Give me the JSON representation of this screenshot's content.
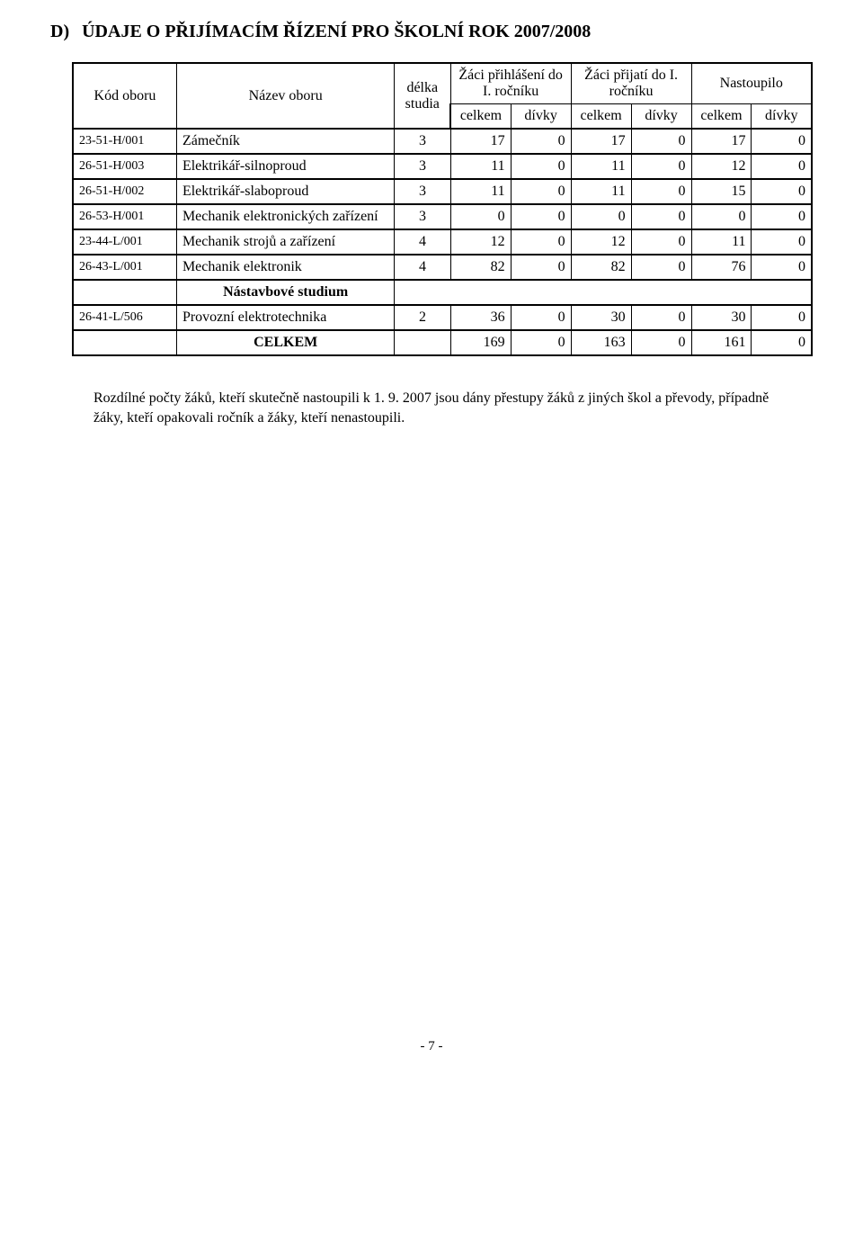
{
  "heading": {
    "letter": "D)",
    "title": "ÚDAJE O PŘIJÍMACÍM ŘÍZENÍ PRO ŠKOLNÍ ROK 2007/2008"
  },
  "table": {
    "headers": {
      "code": "Kód oboru",
      "name": "Název oboru",
      "duration": "délka studia",
      "group_applied": "Žáci přihlášení do I. ročníku",
      "group_accepted": "Žáci přijatí do I. ročníku",
      "group_enrolled": "Nastoupilo",
      "sub_total": "celkem",
      "sub_girls": "dívky"
    },
    "rows": [
      {
        "code": "23-51-H/001",
        "name": "Zámečník",
        "dur": "3",
        "a_t": "17",
        "a_g": "0",
        "p_t": "17",
        "p_g": "0",
        "n_t": "17",
        "n_g": "0"
      },
      {
        "code": "26-51-H/003",
        "name": "Elektrikář-silnoproud",
        "dur": "3",
        "a_t": "11",
        "a_g": "0",
        "p_t": "11",
        "p_g": "0",
        "n_t": "12",
        "n_g": "0"
      },
      {
        "code": "26-51-H/002",
        "name": "Elektrikář-slaboproud",
        "dur": "3",
        "a_t": "11",
        "a_g": "0",
        "p_t": "11",
        "p_g": "0",
        "n_t": "15",
        "n_g": "0"
      },
      {
        "code": "26-53-H/001",
        "name": "Mechanik elektronických zařízení",
        "dur": "3",
        "a_t": "0",
        "a_g": "0",
        "p_t": "0",
        "p_g": "0",
        "n_t": "0",
        "n_g": "0"
      },
      {
        "code": "23-44-L/001",
        "name": "Mechanik strojů a zařízení",
        "dur": "4",
        "a_t": "12",
        "a_g": "0",
        "p_t": "12",
        "p_g": "0",
        "n_t": "11",
        "n_g": "0"
      },
      {
        "code": "26-43-L/001",
        "name": "Mechanik elektronik",
        "dur": "4",
        "a_t": "82",
        "a_g": "0",
        "p_t": "82",
        "p_g": "0",
        "n_t": "76",
        "n_g": "0"
      }
    ],
    "section_label": "Nástavbové studium",
    "section_rows": [
      {
        "code": "26-41-L/506",
        "name": "Provozní elektrotechnika",
        "dur": "2",
        "a_t": "36",
        "a_g": "0",
        "p_t": "30",
        "p_g": "0",
        "n_t": "30",
        "n_g": "0"
      }
    ],
    "totals": {
      "label": "CELKEM",
      "a_t": "169",
      "a_g": "0",
      "p_t": "163",
      "p_g": "0",
      "n_t": "161",
      "n_g": "0"
    }
  },
  "note": "Rozdílné počty žáků, kteří skutečně nastoupili k 1. 9. 2007 jsou dány přestupy žáků z jiných škol a převody, případně žáky, kteří opakovali ročník a žáky, kteří nenastoupili.",
  "footer": "- 7 -"
}
